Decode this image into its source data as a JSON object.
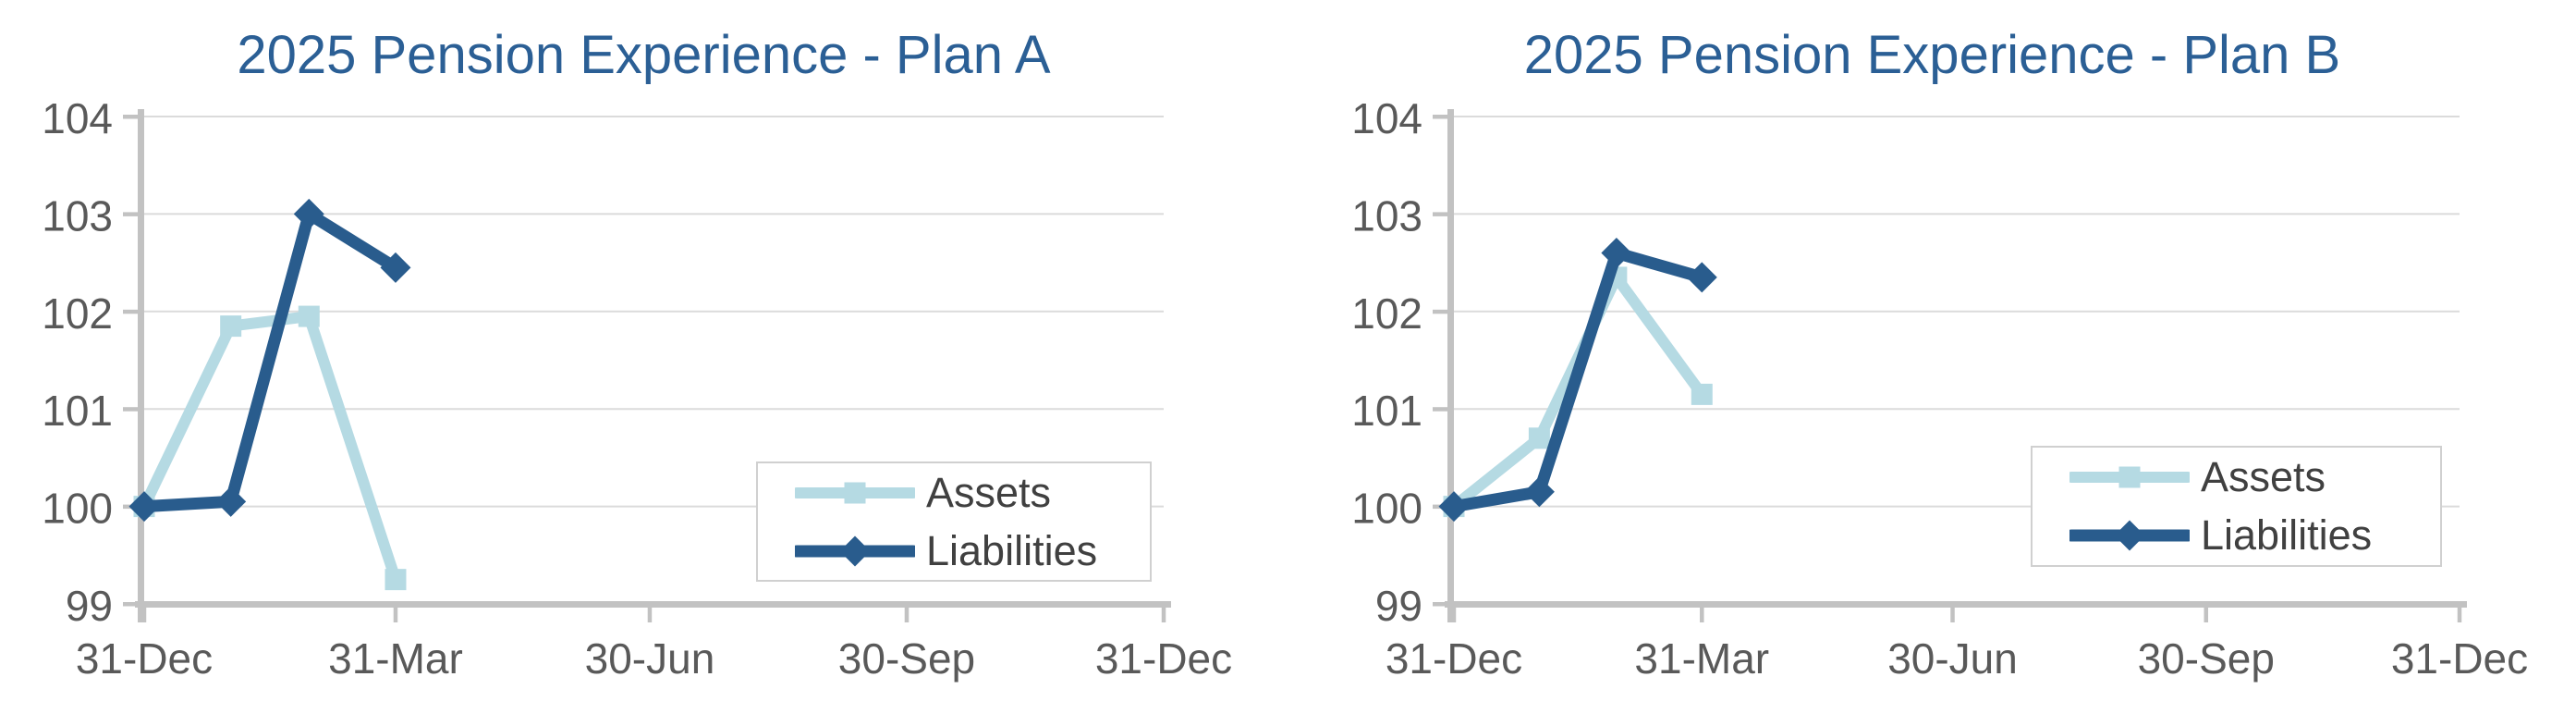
{
  "colors": {
    "title": "#2B5F95",
    "gridline": "#DBDBDB",
    "axis": "#C2C2C2",
    "tick_label": "#595959",
    "legend_text": "#404040",
    "legend_border": "#D0D0D0",
    "assets": "#B5DAE3",
    "liabilities": "#295C8D"
  },
  "chart_data": [
    {
      "type": "line",
      "title": "2025 Pension Experience - Plan A",
      "x_tick_labels": [
        "31-Dec",
        "31-Mar",
        "30-Jun",
        "30-Sep",
        "31-Dec"
      ],
      "x_tick_days": [
        0,
        90,
        181,
        273,
        365
      ],
      "x_axis_range_days": [
        0,
        365
      ],
      "y_ticks": [
        99,
        100,
        101,
        102,
        103,
        104
      ],
      "ylim": [
        99,
        104
      ],
      "grid": true,
      "legend_position": "lower-right",
      "point_dates": [
        "31-Dec",
        "31-Jan",
        "28-Feb",
        "31-Mar"
      ],
      "x_days": [
        0,
        31,
        59,
        90
      ],
      "series": [
        {
          "name": "Assets",
          "marker": "square",
          "color": "#B5DAE3",
          "values": [
            100.0,
            101.85,
            101.95,
            99.25
          ]
        },
        {
          "name": "Liabilities",
          "marker": "diamond",
          "color": "#295C8D",
          "values": [
            100.0,
            100.05,
            103.0,
            102.45
          ]
        }
      ]
    },
    {
      "type": "line",
      "title": "2025 Pension Experience - Plan B",
      "x_tick_labels": [
        "31-Dec",
        "31-Mar",
        "30-Jun",
        "30-Sep",
        "31-Dec"
      ],
      "x_tick_days": [
        0,
        90,
        181,
        273,
        365
      ],
      "x_axis_range_days": [
        0,
        365
      ],
      "y_ticks": [
        99,
        100,
        101,
        102,
        103,
        104
      ],
      "ylim": [
        99,
        104
      ],
      "grid": true,
      "legend_position": "lower-right",
      "point_dates": [
        "31-Dec",
        "31-Jan",
        "28-Feb",
        "31-Mar"
      ],
      "x_days": [
        0,
        31,
        59,
        90
      ],
      "series": [
        {
          "name": "Assets",
          "marker": "square",
          "color": "#B5DAE3",
          "values": [
            100.0,
            100.7,
            102.35,
            101.15
          ]
        },
        {
          "name": "Liabilities",
          "marker": "diamond",
          "color": "#295C8D",
          "values": [
            100.0,
            100.15,
            102.6,
            102.35
          ]
        }
      ]
    }
  ]
}
